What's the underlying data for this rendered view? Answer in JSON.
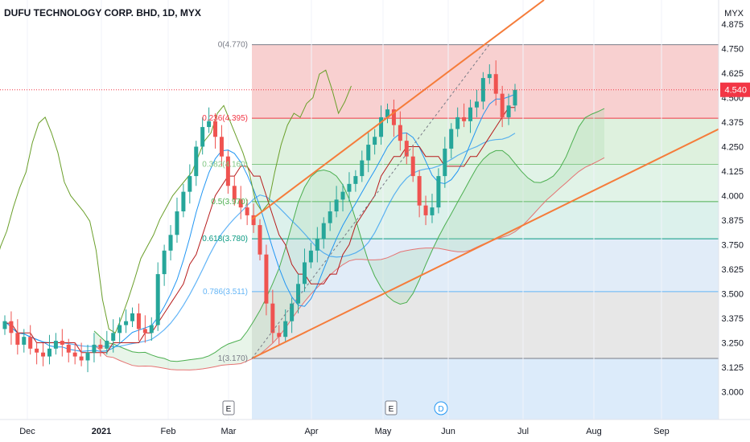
{
  "header": {
    "symbol_title": "DUFU TECHNOLOGY CORP. BHD, 1D, MYX"
  },
  "price_axis": {
    "currency": "MYX",
    "ticks": [
      "4.875",
      "4.750",
      "4.625",
      "4.500",
      "4.375",
      "4.250",
      "4.125",
      "4.000",
      "3.875",
      "3.750",
      "3.625",
      "3.500",
      "3.375",
      "3.250",
      "3.125",
      "3.000"
    ],
    "last_price": "4.540",
    "last_price_color": "#f23645"
  },
  "time_axis": {
    "labels": [
      "Dec",
      "2021",
      "Feb",
      "Mar",
      "Apr",
      "May",
      "Jun",
      "Jul",
      "Aug",
      "Sep"
    ]
  },
  "events": [
    {
      "label": "E",
      "type": "earnings"
    },
    {
      "label": "E",
      "type": "earnings"
    },
    {
      "label": "D",
      "type": "dividend"
    }
  ],
  "colors": {
    "up": "#26a69a",
    "down": "#ef5350",
    "channel": "#f57c3a",
    "ema_blue": "#2196f3",
    "kijun_red": "#b71c1c",
    "span_green": "#4caf50",
    "span_lagging": "#6a9f2a"
  },
  "chart_data": {
    "type": "candlestick",
    "title": "DUFU TECHNOLOGY CORP. BHD, 1D, MYX",
    "ylim": [
      2.94,
      4.9
    ],
    "x_months": [
      "Dec",
      "2021",
      "Feb",
      "Mar",
      "Apr",
      "May",
      "Jun",
      "Jul",
      "Aug",
      "Sep"
    ],
    "fibonacci": [
      {
        "level": "0",
        "price": 4.77,
        "label": "0(4.770)",
        "color": "#787b86"
      },
      {
        "level": "0.236",
        "price": 4.395,
        "label": "0.236(4.395)",
        "color": "#f23645"
      },
      {
        "level": "0.382",
        "price": 4.16,
        "label": "0.382(4.160)",
        "color": "#81c784"
      },
      {
        "level": "0.5",
        "price": 3.97,
        "label": "0.5(3.970)",
        "color": "#4caf50"
      },
      {
        "level": "0.618",
        "price": 3.78,
        "label": "0.618(3.780)",
        "color": "#089981"
      },
      {
        "level": "0.786",
        "price": 3.511,
        "label": "0.786(3.511)",
        "color": "#64b5f6"
      },
      {
        "level": "1",
        "price": 3.17,
        "label": "1(3.170)",
        "color": "#787b86"
      }
    ],
    "last_close": 4.54,
    "closes": [
      3.36,
      3.3,
      3.24,
      3.28,
      3.22,
      3.2,
      3.18,
      3.22,
      3.26,
      3.24,
      3.2,
      3.18,
      3.16,
      3.2,
      3.24,
      3.22,
      3.26,
      3.3,
      3.34,
      3.36,
      3.4,
      3.32,
      3.3,
      3.34,
      3.6,
      3.72,
      3.8,
      3.92,
      4.02,
      4.1,
      4.25,
      4.35,
      4.38,
      4.3,
      4.2,
      4.05,
      3.98,
      3.94,
      3.9,
      3.85,
      3.7,
      3.45,
      3.3,
      3.28,
      3.36,
      3.45,
      3.55,
      3.66,
      3.72,
      3.78,
      3.86,
      3.92,
      3.98,
      4.02,
      4.06,
      4.1,
      4.18,
      4.26,
      4.3,
      4.4,
      4.44,
      4.36,
      4.28,
      4.2,
      4.1,
      3.95,
      3.9,
      3.94,
      4.1,
      4.24,
      4.34,
      4.4,
      4.38,
      4.45,
      4.48,
      4.6,
      4.62,
      4.52,
      4.4,
      4.46,
      4.54
    ]
  }
}
